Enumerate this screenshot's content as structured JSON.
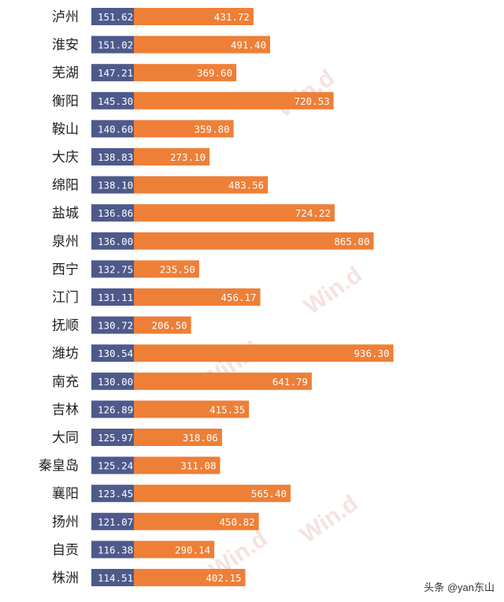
{
  "chart_data": {
    "type": "bar",
    "categories": [
      "泸州",
      "淮安",
      "芜湖",
      "衡阳",
      "鞍山",
      "大庆",
      "绵阳",
      "盐城",
      "泉州",
      "西宁",
      "江门",
      "抚顺",
      "潍坊",
      "南充",
      "吉林",
      "大同",
      "秦皇岛",
      "襄阳",
      "扬州",
      "自贡",
      "株洲"
    ],
    "series": [
      {
        "values": [
          151.62,
          151.02,
          147.21,
          145.3,
          140.6,
          138.83,
          138.1,
          136.86,
          136.0,
          132.75,
          131.11,
          130.72,
          130.54,
          130.0,
          126.89,
          125.97,
          125.24,
          123.45,
          121.07,
          116.38,
          114.51
        ]
      },
      {
        "values": [
          431.72,
          491.4,
          369.6,
          720.53,
          359.8,
          273.1,
          483.56,
          724.22,
          865.0,
          235.5,
          456.17,
          206.5,
          936.3,
          641.79,
          415.35,
          318.06,
          311.08,
          565.4,
          450.82,
          290.14,
          402.15
        ]
      }
    ],
    "value_labels_first": [
      "151.62",
      "151.02",
      "147.21",
      "145.30",
      "140.60",
      "138.83",
      "138.10",
      "136.86",
      "136.00",
      "132.75",
      "131.11",
      "130.72",
      "130.54",
      "130.00",
      "126.89",
      "125.97",
      "125.24",
      "123.45",
      "121.07",
      "116.38",
      "114.51"
    ],
    "value_labels_second": [
      "431.72",
      "491.40",
      "369.60",
      "720.53",
      "359.80",
      "273.10",
      "483.56",
      "724.22",
      "865.00",
      "235.50",
      "456.17",
      "206.50",
      "936.30",
      "641.79",
      "415.35",
      "318.06",
      "311.08",
      "565.40",
      "450.82",
      "290.14",
      "402.15"
    ],
    "colors": {
      "first": "#4e5a8c",
      "second": "#ee7f37"
    },
    "watermark": "Win.d",
    "grid": false
  },
  "credit": "头条 @yan东山"
}
